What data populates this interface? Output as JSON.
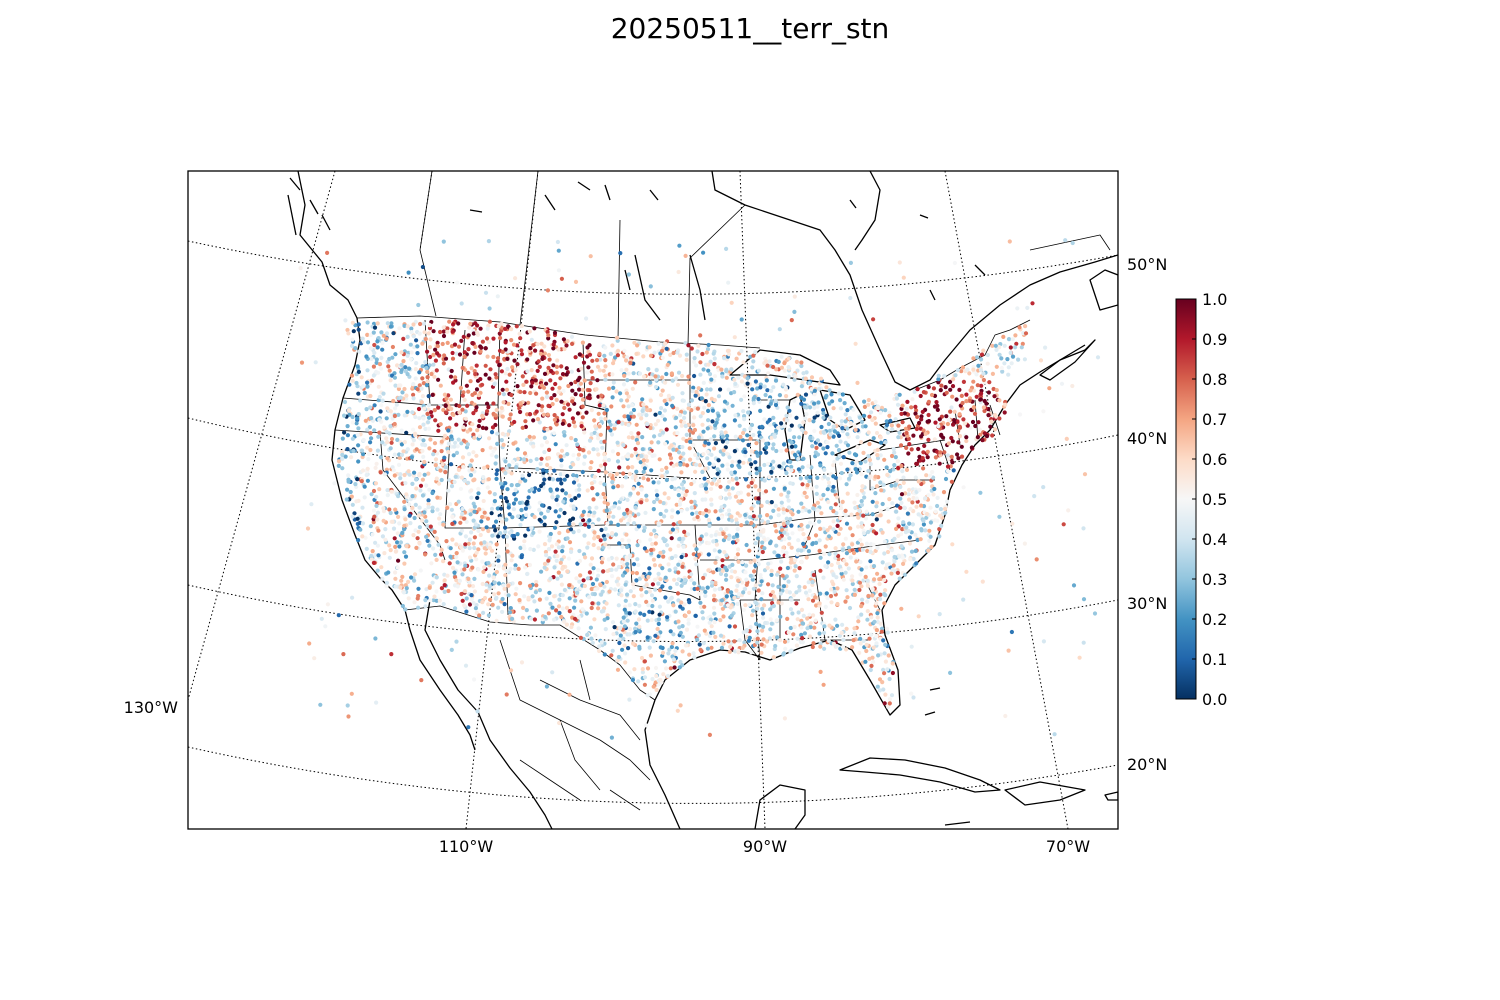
{
  "title": "20250511__terr_stn",
  "map": {
    "projection": "lambert-conformal (CONUS)",
    "lat_labels": [
      "50°N",
      "40°N",
      "30°N",
      "20°N"
    ],
    "lon_labels": [
      "130°W",
      "110°W",
      "90°W",
      "70°W"
    ],
    "graticule": "dotted",
    "coastlines": true,
    "state_borders": true,
    "marker": "small filled circles colored by value"
  },
  "colorbar": {
    "colormap": "RdBu_r",
    "min": 0.0,
    "max": 1.0,
    "ticks": [
      "0.0",
      "0.1",
      "0.2",
      "0.3",
      "0.4",
      "0.5",
      "0.6",
      "0.7",
      "0.8",
      "0.9",
      "1.0"
    ],
    "colors": [
      "#053061",
      "#2166ac",
      "#4393c3",
      "#92c5de",
      "#d1e5f0",
      "#f7f7f7",
      "#fddbc7",
      "#f4a582",
      "#d6604d",
      "#b2182b",
      "#67001f"
    ]
  }
}
